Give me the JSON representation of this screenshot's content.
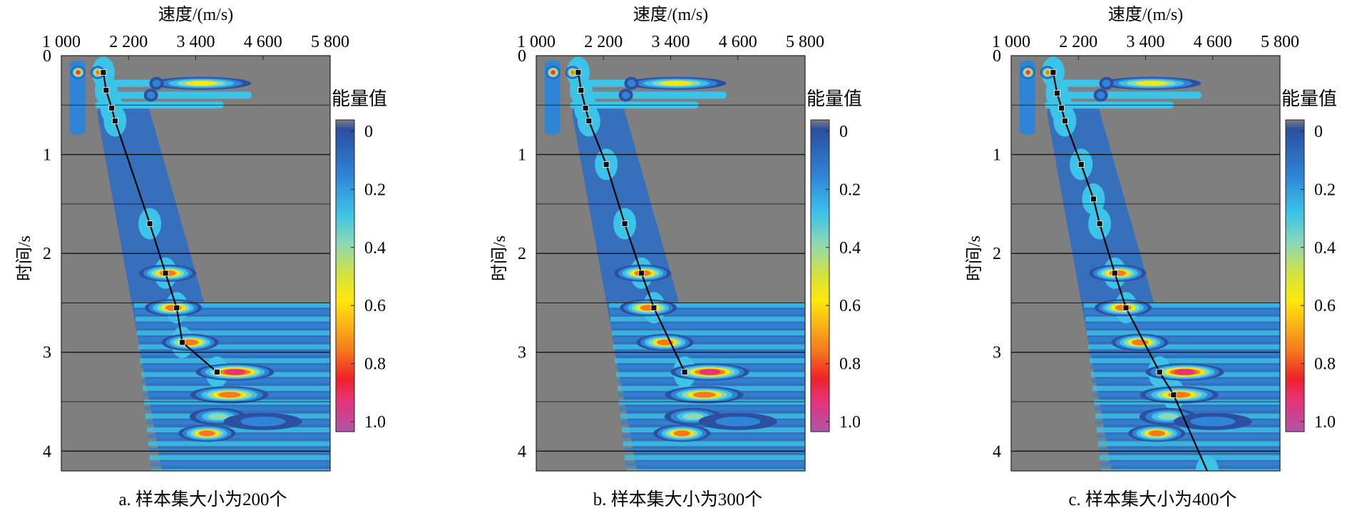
{
  "figure": {
    "panels": [
      {
        "id": "a",
        "caption": "a. 样本集大小为200个",
        "xlabel": "速度/(m/s)",
        "ylabel": "时间/s",
        "colorbar_title": "能量值",
        "x_ticks": [
          "1 000",
          "2 200",
          "3 400",
          "4 600",
          "5 800"
        ],
        "y_ticks": [
          "0",
          "1",
          "2",
          "3",
          "4"
        ],
        "colorbar_ticks": [
          "0",
          "0.2",
          "0.4",
          "0.6",
          "0.8",
          "1.0"
        ]
      },
      {
        "id": "b",
        "caption": "b. 样本集大小为300个",
        "xlabel": "速度/(m/s)",
        "ylabel": "时间/s",
        "colorbar_title": "能量值",
        "x_ticks": [
          "1 000",
          "2 200",
          "3 400",
          "4 600",
          "5 800"
        ],
        "y_ticks": [
          "0",
          "1",
          "2",
          "3",
          "4"
        ],
        "colorbar_ticks": [
          "0",
          "0.2",
          "0.4",
          "0.6",
          "0.8",
          "1.0"
        ]
      },
      {
        "id": "c",
        "caption": "c. 样本集大小为400个",
        "xlabel": "速度/(m/s)",
        "ylabel": "时间/s",
        "colorbar_title": "能量值",
        "x_ticks": [
          "1 000",
          "2 200",
          "3 400",
          "4 600",
          "5 800"
        ],
        "y_ticks": [
          "0",
          "1",
          "2",
          "3",
          "4"
        ],
        "colorbar_ticks": [
          "0",
          "0.2",
          "0.4",
          "0.6",
          "0.8",
          "1.0"
        ]
      }
    ]
  },
  "chart_data": [
    {
      "type": "heatmap",
      "xlabel": "速度/(m/s)",
      "ylabel": "时间/s",
      "xlim": [
        1000,
        5800
      ],
      "ylim": [
        0,
        4.2
      ],
      "colorbar": {
        "title": "能量值",
        "range": [
          0,
          1.0
        ]
      },
      "energy_blobs": [
        {
          "x": 1300,
          "y": 0.17,
          "value": 0.9
        },
        {
          "x": 1650,
          "y": 0.17,
          "value": 0.8
        },
        {
          "x": 3500,
          "y": 0.28,
          "value": 0.75
        },
        {
          "x": 2700,
          "y": 0.28,
          "value": 0.3
        },
        {
          "x": 2600,
          "y": 0.4,
          "value": 0.25
        },
        {
          "x": 2900,
          "y": 2.2,
          "value": 0.85
        },
        {
          "x": 3000,
          "y": 2.55,
          "value": 0.85
        },
        {
          "x": 3300,
          "y": 2.9,
          "value": 0.85
        },
        {
          "x": 4100,
          "y": 3.2,
          "value": 0.9
        },
        {
          "x": 4000,
          "y": 3.43,
          "value": 0.85
        },
        {
          "x": 3800,
          "y": 3.65,
          "value": 0.6
        },
        {
          "x": 3600,
          "y": 3.82,
          "value": 0.85
        },
        {
          "x": 4600,
          "y": 3.7,
          "value": 0.3
        }
      ],
      "picked_velocity": [
        {
          "x": 1750,
          "y": 0.17
        },
        {
          "x": 1800,
          "y": 0.35
        },
        {
          "x": 1900,
          "y": 0.53
        },
        {
          "x": 1960,
          "y": 0.66
        },
        {
          "x": 2580,
          "y": 1.7
        },
        {
          "x": 2860,
          "y": 2.2
        },
        {
          "x": 3060,
          "y": 2.55
        },
        {
          "x": 3160,
          "y": 2.9
        },
        {
          "x": 3780,
          "y": 3.2
        }
      ]
    },
    {
      "type": "heatmap",
      "xlabel": "速度/(m/s)",
      "ylabel": "时间/s",
      "xlim": [
        1000,
        5800
      ],
      "ylim": [
        0,
        4.2
      ],
      "colorbar": {
        "title": "能量值",
        "range": [
          0,
          1.0
        ]
      },
      "energy_blobs": [
        {
          "x": 1300,
          "y": 0.17,
          "value": 0.9
        },
        {
          "x": 1650,
          "y": 0.17,
          "value": 0.8
        },
        {
          "x": 3500,
          "y": 0.28,
          "value": 0.75
        },
        {
          "x": 2700,
          "y": 0.28,
          "value": 0.3
        },
        {
          "x": 2600,
          "y": 0.4,
          "value": 0.25
        },
        {
          "x": 2900,
          "y": 2.2,
          "value": 0.85
        },
        {
          "x": 3000,
          "y": 2.55,
          "value": 0.85
        },
        {
          "x": 3300,
          "y": 2.9,
          "value": 0.85
        },
        {
          "x": 4100,
          "y": 3.2,
          "value": 0.9
        },
        {
          "x": 4000,
          "y": 3.43,
          "value": 0.85
        },
        {
          "x": 3800,
          "y": 3.65,
          "value": 0.6
        },
        {
          "x": 3600,
          "y": 3.82,
          "value": 0.85
        },
        {
          "x": 4600,
          "y": 3.7,
          "value": 0.3
        }
      ],
      "picked_velocity": [
        {
          "x": 1750,
          "y": 0.17
        },
        {
          "x": 1800,
          "y": 0.35
        },
        {
          "x": 1880,
          "y": 0.53
        },
        {
          "x": 1940,
          "y": 0.66
        },
        {
          "x": 2250,
          "y": 1.1
        },
        {
          "x": 2580,
          "y": 1.7
        },
        {
          "x": 2880,
          "y": 2.2
        },
        {
          "x": 3100,
          "y": 2.55
        },
        {
          "x": 3650,
          "y": 3.2
        }
      ]
    },
    {
      "type": "heatmap",
      "xlabel": "速度/(m/s)",
      "ylabel": "时间/s",
      "xlim": [
        1000,
        5800
      ],
      "ylim": [
        0,
        4.2
      ],
      "colorbar": {
        "title": "能量值",
        "range": [
          0,
          1.0
        ]
      },
      "energy_blobs": [
        {
          "x": 1300,
          "y": 0.17,
          "value": 0.9
        },
        {
          "x": 1650,
          "y": 0.17,
          "value": 0.8
        },
        {
          "x": 3500,
          "y": 0.28,
          "value": 0.75
        },
        {
          "x": 2700,
          "y": 0.28,
          "value": 0.3
        },
        {
          "x": 2600,
          "y": 0.4,
          "value": 0.25
        },
        {
          "x": 2900,
          "y": 2.2,
          "value": 0.85
        },
        {
          "x": 3000,
          "y": 2.55,
          "value": 0.85
        },
        {
          "x": 3300,
          "y": 2.9,
          "value": 0.85
        },
        {
          "x": 4100,
          "y": 3.2,
          "value": 0.9
        },
        {
          "x": 4000,
          "y": 3.43,
          "value": 0.85
        },
        {
          "x": 3800,
          "y": 3.65,
          "value": 0.6
        },
        {
          "x": 3600,
          "y": 3.82,
          "value": 0.85
        },
        {
          "x": 4600,
          "y": 3.7,
          "value": 0.3
        }
      ],
      "picked_velocity": [
        {
          "x": 1750,
          "y": 0.17
        },
        {
          "x": 1820,
          "y": 0.38
        },
        {
          "x": 1900,
          "y": 0.53
        },
        {
          "x": 1960,
          "y": 0.66
        },
        {
          "x": 2250,
          "y": 1.1
        },
        {
          "x": 2470,
          "y": 1.45
        },
        {
          "x": 2580,
          "y": 1.7
        },
        {
          "x": 2850,
          "y": 2.2
        },
        {
          "x": 3050,
          "y": 2.55
        },
        {
          "x": 3650,
          "y": 3.2
        },
        {
          "x": 3900,
          "y": 3.43
        },
        {
          "x": 4500,
          "y": 4.2
        }
      ]
    }
  ]
}
